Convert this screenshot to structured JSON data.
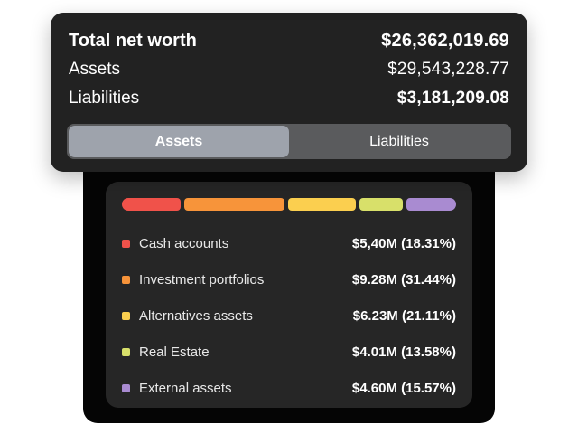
{
  "summary": {
    "total_label": "Total net worth",
    "total_value": "$26,362,019.69",
    "assets_label": "Assets",
    "assets_value": "$29,543,228.77",
    "liabilities_label": "Liabilities",
    "liabilities_value": "$3,181,209.08"
  },
  "tabs": [
    {
      "label": "Assets",
      "active": true
    },
    {
      "label": "Liabilities",
      "active": false
    }
  ],
  "breakdown": {
    "items": [
      {
        "label": "Cash accounts",
        "value": "$5,40M (18.31%)",
        "share": 18.31,
        "color": "#f0524a"
      },
      {
        "label": "Investment portfolios",
        "value": "$9.28M (31.44%)",
        "share": 31.44,
        "color": "#f7943a"
      },
      {
        "label": "Alternatives assets",
        "value": "$6.23M (21.11%)",
        "share": 21.11,
        "color": "#fbcf4f"
      },
      {
        "label": "Real Estate",
        "value": "$4.01M (13.58%)",
        "share": 13.58,
        "color": "#d8e06a"
      },
      {
        "label": "External assets",
        "value": "$4.60M (15.57%)",
        "share": 15.57,
        "color": "#a98bd1"
      }
    ]
  },
  "colors": {
    "card_background": "#222222",
    "panel_background": "#050505",
    "active_tab": "#9ea3ac"
  }
}
